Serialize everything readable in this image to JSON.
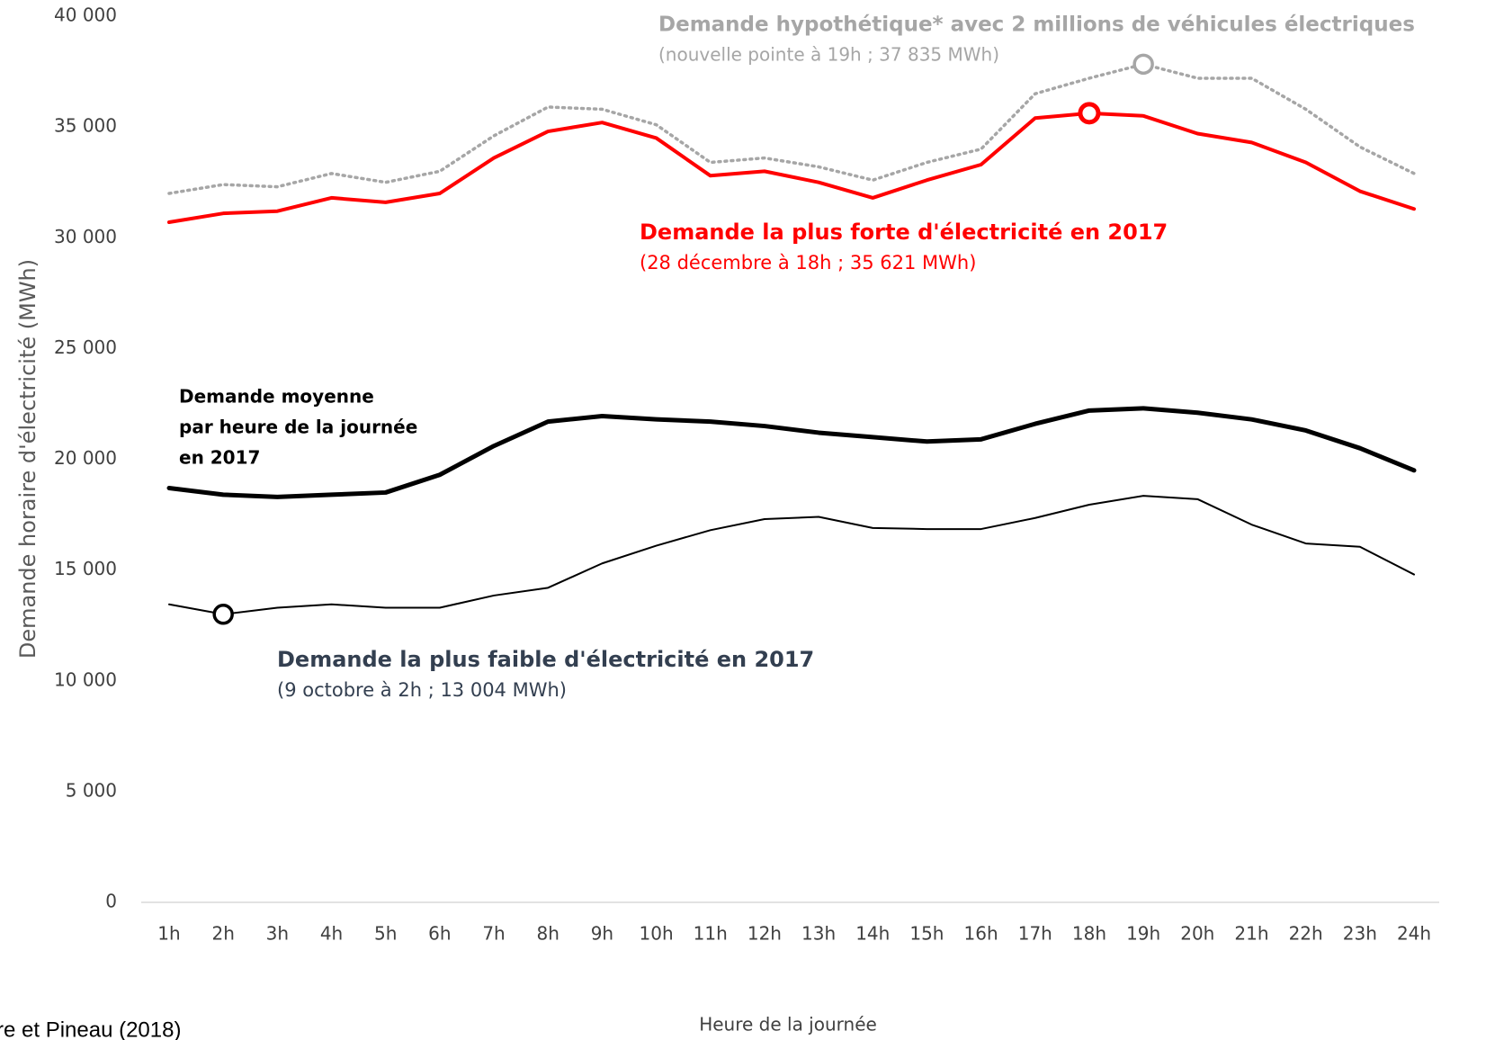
{
  "chart_data": {
    "type": "line",
    "x_label": "Heure de la journée",
    "y_label": "Demande horaire d'électricité  (MWh)",
    "source": "re et Pineau (2018)",
    "categories": [
      "1h",
      "2h",
      "3h",
      "4h",
      "5h",
      "6h",
      "7h",
      "8h",
      "9h",
      "10h",
      "11h",
      "12h",
      "13h",
      "14h",
      "15h",
      "16h",
      "17h",
      "18h",
      "19h",
      "20h",
      "21h",
      "22h",
      "23h",
      "24h"
    ],
    "ylim": [
      0,
      40000
    ],
    "yticks": [
      0,
      {
        "value": 5000,
        "label": "5 000"
      },
      {
        "value": 10000,
        "label": "10 000"
      },
      {
        "value": 15000,
        "label": "15 000"
      },
      {
        "value": 20000,
        "label": "20 000"
      },
      {
        "value": 25000,
        "label": "25 000"
      },
      {
        "value": 30000,
        "label": "30 000"
      },
      {
        "value": 35000,
        "label": "35 000"
      },
      {
        "value": 40000,
        "label": "40 000"
      }
    ],
    "series": [
      {
        "name": "Demande hypothétique* avec 2 millions de véhicules électriques",
        "subtitle": "(nouvelle pointe à 19h ; 37 835 MWh)",
        "color": "#a6a6a6",
        "style": "dotted",
        "values": [
          32000,
          32400,
          32300,
          32900,
          32500,
          33000,
          34600,
          35900,
          35800,
          35100,
          33400,
          33600,
          33200,
          32600,
          33400,
          34000,
          36500,
          37200,
          37835,
          37200,
          37200,
          35800,
          34100,
          32900
        ]
      },
      {
        "name": "Demande la plus forte d'électricité en 2017",
        "subtitle": "(28 décembre à 18h ; 35 621 MWh)",
        "color": "#ff0000",
        "style": "solid",
        "values": [
          30700,
          31100,
          31200,
          31800,
          31600,
          32000,
          33600,
          34800,
          35200,
          34500,
          32800,
          33000,
          32500,
          31800,
          32600,
          33300,
          35400,
          35621,
          35500,
          34700,
          34300,
          33400,
          32100,
          31300
        ]
      },
      {
        "name": [
          "Demande moyenne",
          "par heure de la journée",
          "en 2017"
        ],
        "color": "#000000",
        "style": "thick",
        "values": [
          18700,
          18400,
          18300,
          18400,
          18500,
          19300,
          20600,
          21700,
          21950,
          21800,
          21700,
          21500,
          21200,
          21000,
          20800,
          20900,
          21600,
          22200,
          22300,
          22100,
          21800,
          21300,
          20500,
          19500
        ]
      },
      {
        "name": "Demande la plus faible d'électricité en 2017",
        "subtitle": "(9 octobre à 2h ; 13 004 MWh)",
        "color": "#000000",
        "label_color": "#333f50",
        "style": "thin",
        "values": [
          13450,
          13004,
          13300,
          13450,
          13300,
          13300,
          13850,
          14200,
          15300,
          16100,
          16800,
          17300,
          17400,
          16900,
          16850,
          16850,
          17350,
          17950,
          18350,
          18200,
          17050,
          16200,
          16050,
          14800
        ]
      }
    ]
  }
}
